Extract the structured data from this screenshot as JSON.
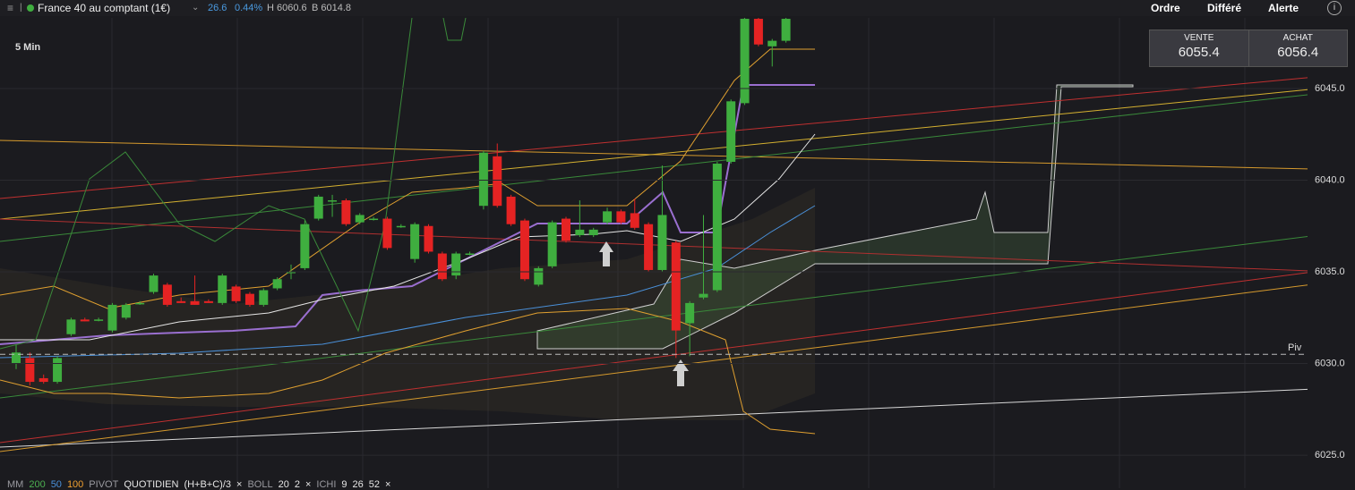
{
  "header": {
    "instrument": "France 40 au comptant (1€)",
    "change": "26.6",
    "change_pct": "0.44%",
    "high": "H 6060.6",
    "low": "B 6014.8",
    "menu": [
      "Ordre",
      "Différé",
      "Alerte"
    ]
  },
  "timeframe": "5 Min",
  "quote": {
    "sell_label": "VENTE",
    "sell": "6055.4",
    "buy_label": "ACHAT",
    "buy": "6056.4"
  },
  "chart": {
    "type": "candlestick",
    "ylim": [
      6023.2,
      6048.85
    ],
    "yticks": [
      {
        "value": 6025,
        "label": "6025.0"
      },
      {
        "value": 6030,
        "label": "6030.0"
      },
      {
        "value": 6035,
        "label": "6035.0"
      },
      {
        "value": 6040,
        "label": "6040.0"
      },
      {
        "value": 6045,
        "label": "6045.0"
      }
    ],
    "up_color": "#3fae3f",
    "down_color": "#e52323",
    "pivot": 6030.5,
    "pivot_label": "Piv",
    "open": [
      6030.0,
      6030.3,
      6029.2,
      6029.0,
      6031.6,
      6032.4,
      6032.4,
      6031.8,
      6032.5,
      6033.3,
      6033.9,
      6034.3,
      6033.4,
      6033.4,
      6033.4,
      6033.3,
      6034.2,
      6033.8,
      6033.2,
      6034.1,
      6035.0,
      6035.2,
      6037.9,
      6038.9,
      6038.9,
      6037.7,
      6037.9,
      6037.9,
      6037.5,
      6035.7,
      6037.5,
      6036.0,
      6034.8,
      6036.0,
      6038.6,
      6041.3,
      6039.1,
      6037.8,
      6034.3,
      6035.3,
      6037.9,
      6037.0,
      6037.0,
      6037.7,
      6038.3,
      6038.2,
      6037.6,
      6035.1,
      6036.6,
      6032.2,
      6033.6,
      6034.0,
      6041.0,
      6044.2,
      6048.8,
      6047.3,
      6047.6
    ],
    "high": [
      6031.0,
      6030.6,
      6029.4,
      6030.4,
      6032.5,
      6032.5,
      6032.5,
      6033.3,
      6033.3,
      6033.4,
      6034.9,
      6034.4,
      6033.6,
      6034.8,
      6033.5,
      6034.9,
      6034.3,
      6033.9,
      6034.1,
      6034.7,
      6035.4,
      6037.8,
      6039.2,
      6039.2,
      6039.0,
      6038.2,
      6038.0,
      6038.0,
      6037.6,
      6037.7,
      6037.6,
      6036.1,
      6036.1,
      6036.1,
      6041.6,
      6042.0,
      6039.2,
      6037.9,
      6035.3,
      6037.8,
      6038.0,
      6038.9,
      6037.4,
      6038.5,
      6038.4,
      6039.0,
      6037.7,
      6040.8,
      6036.7,
      6033.4,
      6038.1,
      6041.0,
      6044.4,
      6048.9,
      6048.9,
      6047.7,
      6048.9
    ],
    "low": [
      6029.7,
      6028.8,
      6028.9,
      6028.9,
      6031.5,
      6032.3,
      6032.3,
      6031.7,
      6032.4,
      6033.2,
      6033.8,
      6033.1,
      6033.3,
      6033.2,
      6033.3,
      6033.2,
      6033.3,
      6033.1,
      6033.1,
      6034.0,
      6034.6,
      6035.1,
      6037.8,
      6038.0,
      6037.5,
      6037.6,
      6037.8,
      6036.2,
      6037.4,
      6035.5,
      6036.0,
      6034.5,
      6034.6,
      6035.9,
      6038.4,
      6038.5,
      6037.5,
      6034.5,
      6034.2,
      6035.2,
      6036.6,
      6036.9,
      6036.9,
      6037.6,
      6037.6,
      6037.3,
      6035.0,
      6035.0,
      6030.3,
      6030.4,
      6033.5,
      6033.9,
      6040.9,
      6044.1,
      6047.3,
      6046.2,
      6047.5
    ],
    "close": [
      6030.6,
      6029.0,
      6029.0,
      6030.3,
      6032.4,
      6032.3,
      6032.4,
      6033.2,
      6033.2,
      6033.3,
      6034.8,
      6033.2,
      6033.3,
      6033.2,
      6033.3,
      6034.8,
      6033.4,
      6033.2,
      6034.0,
      6034.6,
      6035.0,
      6037.6,
      6039.1,
      6038.9,
      6037.6,
      6038.1,
      6037.9,
      6036.3,
      6037.5,
      6037.6,
      6036.1,
      6034.6,
      6036.0,
      6036.0,
      6041.5,
      6038.6,
      6037.6,
      6034.6,
      6035.2,
      6037.7,
      6036.7,
      6037.3,
      6037.3,
      6038.3,
      6037.7,
      6037.4,
      6035.1,
      6038.1,
      6031.8,
      6033.3,
      6033.8,
      6040.9,
      6044.3,
      6048.8,
      6047.4,
      6047.6,
      6048.8
    ]
  },
  "legend": [
    {
      "text": "MM",
      "color": "#9a9aa0"
    },
    {
      "text": "200",
      "color": "#4caf50"
    },
    {
      "text": "50",
      "color": "#4a90d9"
    },
    {
      "text": "100",
      "color": "#f0a030"
    },
    {
      "text": "PIVOT",
      "color": "#9a9aa0"
    },
    {
      "text": "QUOTIDIEN",
      "color": "#e6e6e6"
    },
    {
      "text": "(H+B+C)/3",
      "color": "#e6e6e6"
    },
    {
      "text": "×",
      "color": "#e6e6e6"
    },
    {
      "text": "BOLL",
      "color": "#9a9aa0"
    },
    {
      "text": "20",
      "color": "#e6e6e6"
    },
    {
      "text": "2",
      "color": "#e6e6e6"
    },
    {
      "text": "×",
      "color": "#e6e6e6"
    },
    {
      "text": "ICHI",
      "color": "#9a9aa0"
    },
    {
      "text": "9",
      "color": "#e6e6e6"
    },
    {
      "text": "26",
      "color": "#e6e6e6"
    },
    {
      "text": "52",
      "color": "#e6e6e6"
    },
    {
      "text": "×",
      "color": "#e6e6e6"
    }
  ]
}
